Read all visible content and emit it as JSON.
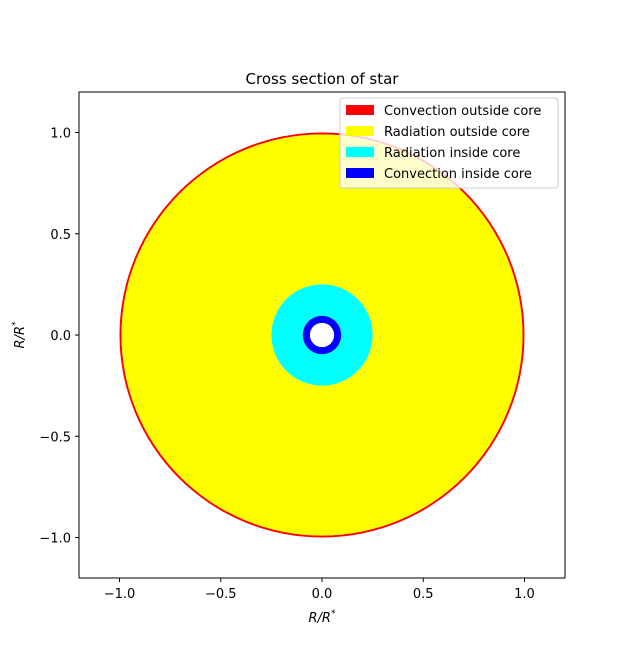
{
  "chart_data": {
    "type": "area",
    "title": "Cross section of star",
    "xlabel": "R/R*",
    "ylabel": "R/R*",
    "xlim": [
      -1.2,
      1.2
    ],
    "ylim": [
      -1.2,
      1.2
    ],
    "xticks": [
      -1.0,
      -0.5,
      0.0,
      0.5,
      1.0
    ],
    "yticks": [
      -1.0,
      -0.5,
      0.0,
      0.5,
      1.0
    ],
    "xtick_labels": [
      "−1.0",
      "−0.5",
      "0.0",
      "0.5",
      "1.0"
    ],
    "ytick_labels": [
      "−1.0",
      "−0.5",
      "0.0",
      "0.5",
      "1.0"
    ],
    "grid": false,
    "legend_position": "top-right",
    "series": [
      {
        "name": "Convection outside core",
        "color": "#ff0000",
        "r_outer": 1.0,
        "r_inner": 0.99
      },
      {
        "name": "Radiation outside core",
        "color": "#ffff00",
        "r_outer": 0.99,
        "r_inner": 0.25
      },
      {
        "name": "Radiation inside core",
        "color": "#00ffff",
        "r_outer": 0.25,
        "r_inner": 0.095
      },
      {
        "name": "Convection inside core",
        "color": "#0000ff",
        "r_outer": 0.095,
        "r_inner": 0.06
      }
    ]
  }
}
